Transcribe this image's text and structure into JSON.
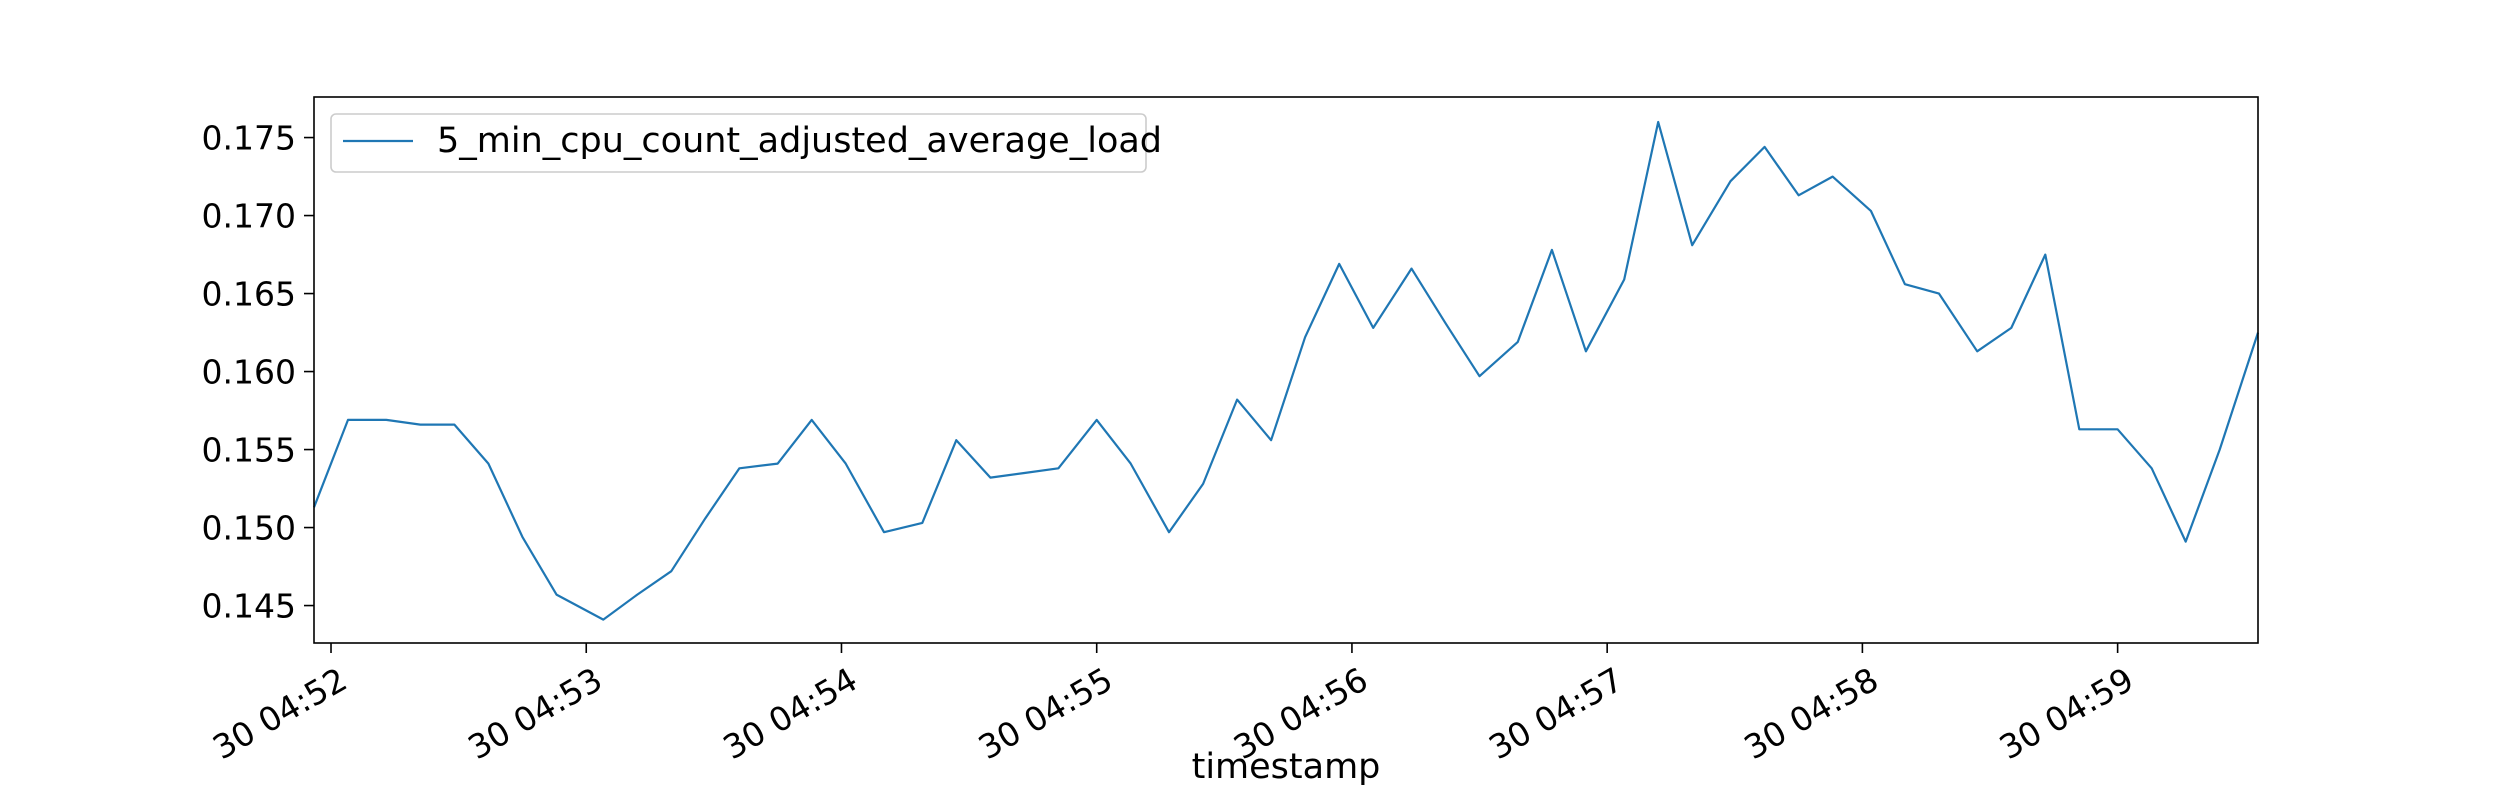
{
  "chart_data": {
    "type": "line",
    "xlabel": "timestamp",
    "ylabel": "",
    "ylim": [
      0.1426,
      0.1776
    ],
    "xlim": [
      "30 04:51:56",
      "30 04:59:33"
    ],
    "grid": false,
    "legend_position": "top-left",
    "colors": {
      "series": "#1f77b4",
      "axis": "#000000"
    },
    "x_ticks": [
      {
        "label": "30 04:52",
        "time": "30 04:52:00"
      },
      {
        "label": "30 04:53",
        "time": "30 04:53:00"
      },
      {
        "label": "30 04:54",
        "time": "30 04:54:00"
      },
      {
        "label": "30 04:55",
        "time": "30 04:55:00"
      },
      {
        "label": "30 04:56",
        "time": "30 04:56:00"
      },
      {
        "label": "30 04:57",
        "time": "30 04:57:00"
      },
      {
        "label": "30 04:58",
        "time": "30 04:58:00"
      },
      {
        "label": "30 04:59",
        "time": "30 04:59:00"
      }
    ],
    "y_ticks": [
      "0.145",
      "0.150",
      "0.155",
      "0.160",
      "0.165",
      "0.170",
      "0.175"
    ],
    "series": [
      {
        "name": "5_min_cpu_count_adjusted_average_load",
        "points": [
          [
            "30 04:51:56",
            0.1513
          ],
          [
            "30 04:52:04",
            0.1569
          ],
          [
            "30 04:52:13",
            0.1569
          ],
          [
            "30 04:52:21",
            0.1566
          ],
          [
            "30 04:52:29",
            0.1566
          ],
          [
            "30 04:52:37",
            0.1541
          ],
          [
            "30 04:52:45",
            0.1494
          ],
          [
            "30 04:52:53",
            0.1457
          ],
          [
            "30 04:53:04",
            0.1441
          ],
          [
            "30 04:53:12",
            0.1457
          ],
          [
            "30 04:53:20",
            0.1472
          ],
          [
            "30 04:53:28",
            0.1506
          ],
          [
            "30 04:53:36",
            0.1538
          ],
          [
            "30 04:53:45",
            0.1541
          ],
          [
            "30 04:53:53",
            0.1569
          ],
          [
            "30 04:54:01",
            0.1541
          ],
          [
            "30 04:54:10",
            0.1497
          ],
          [
            "30 04:54:19",
            0.1503
          ],
          [
            "30 04:54:27",
            0.1556
          ],
          [
            "30 04:54:35",
            0.1532
          ],
          [
            "30 04:54:43",
            0.1535
          ],
          [
            "30 04:54:51",
            0.1538
          ],
          [
            "30 04:55:00",
            0.1569
          ],
          [
            "30 04:55:08",
            0.1541
          ],
          [
            "30 04:55:17",
            0.1497
          ],
          [
            "30 04:55:25",
            0.1528
          ],
          [
            "30 04:55:33",
            0.1582
          ],
          [
            "30 04:55:41",
            0.1556
          ],
          [
            "30 04:55:49",
            0.1622
          ],
          [
            "30 04:55:57",
            0.1669
          ],
          [
            "30 04:56:05",
            0.1628
          ],
          [
            "30 04:56:14",
            0.1666
          ],
          [
            "30 04:56:22",
            0.1631
          ],
          [
            "30 04:56:30",
            0.1597
          ],
          [
            "30 04:56:39",
            0.1619
          ],
          [
            "30 04:56:47",
            0.1678
          ],
          [
            "30 04:56:55",
            0.1613
          ],
          [
            "30 04:57:04",
            0.1659
          ],
          [
            "30 04:57:12",
            0.176
          ],
          [
            "30 04:57:20",
            0.1681
          ],
          [
            "30 04:57:29",
            0.1722
          ],
          [
            "30 04:57:37",
            0.1744
          ],
          [
            "30 04:57:45",
            0.1713
          ],
          [
            "30 04:57:53",
            0.1725
          ],
          [
            "30 04:58:02",
            0.1703
          ],
          [
            "30 04:58:10",
            0.1656
          ],
          [
            "30 04:58:18",
            0.165
          ],
          [
            "30 04:58:27",
            0.1613
          ],
          [
            "30 04:58:35",
            0.1628
          ],
          [
            "30 04:58:43",
            0.1675
          ],
          [
            "30 04:58:51",
            0.1563
          ],
          [
            "30 04:59:00",
            0.1563
          ],
          [
            "30 04:59:08",
            0.1538
          ],
          [
            "30 04:59:16",
            0.1491
          ],
          [
            "30 04:59:24",
            0.155
          ],
          [
            "30 04:59:33",
            0.1625
          ]
        ]
      }
    ]
  }
}
